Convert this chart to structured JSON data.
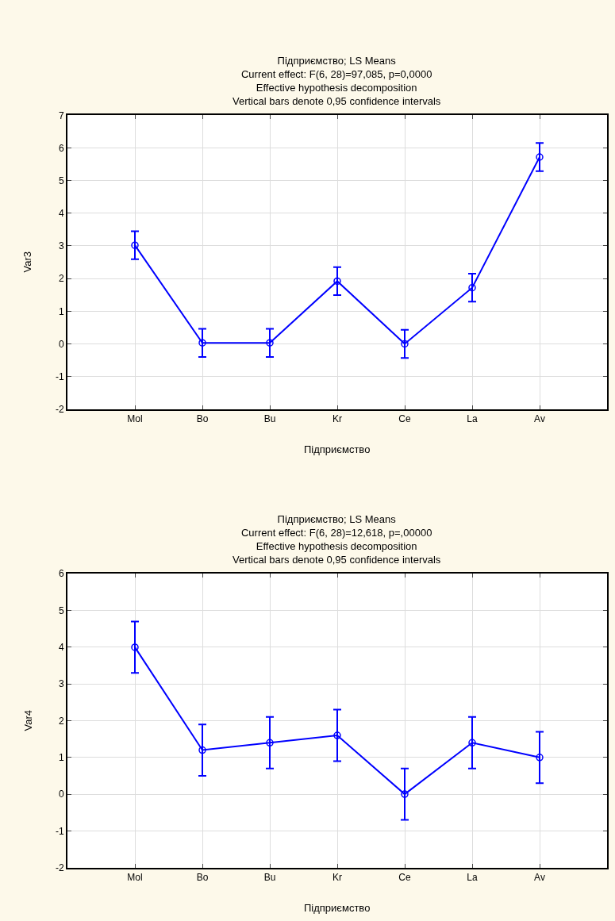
{
  "chart_data": [
    {
      "type": "line",
      "title": "Підприємство; LS Means",
      "subtitle": "Current effect: F(6, 28)=97,085, p=0,0000\nEffective hypothesis decomposition\nVertical bars denote 0,95 confidence intervals",
      "xlabel": "Підприємство",
      "ylabel": "Var3",
      "categories": [
        "Mol",
        "Bo",
        "Bu",
        "Kr",
        "Ce",
        "La",
        "Av"
      ],
      "series": [
        {
          "color": "#0000ff",
          "values": [
            3.02,
            0.03,
            0.03,
            1.92,
            0.0,
            1.72,
            5.72
          ],
          "errors": [
            0.43,
            0.43,
            0.43,
            0.43,
            0.43,
            0.43,
            0.43
          ]
        }
      ],
      "ylim": [
        -2,
        7
      ],
      "yticks": [
        -2,
        -1,
        0,
        1,
        2,
        3,
        4,
        5,
        6,
        7
      ],
      "grid": true,
      "marker": "circle",
      "line_style": "solid"
    },
    {
      "type": "line",
      "title": "Підприємство; LS Means",
      "subtitle": "Current effect: F(6, 28)=12,618, p=,00000\nEffective hypothesis decomposition\nVertical bars denote 0,95 confidence intervals",
      "xlabel": "Підприємство",
      "ylabel": "Var4",
      "categories": [
        "Mol",
        "Bo",
        "Bu",
        "Kr",
        "Ce",
        "La",
        "Av"
      ],
      "series": [
        {
          "color": "#0000ff",
          "values": [
            4.0,
            1.2,
            1.4,
            1.6,
            0.0,
            1.4,
            1.0
          ],
          "errors": [
            0.7,
            0.7,
            0.7,
            0.7,
            0.7,
            0.7,
            0.7
          ]
        }
      ],
      "ylim": [
        -2,
        6
      ],
      "yticks": [
        -2,
        -1,
        0,
        1,
        2,
        3,
        4,
        5,
        6
      ],
      "grid": true,
      "marker": "circle",
      "line_style": "solid"
    }
  ]
}
